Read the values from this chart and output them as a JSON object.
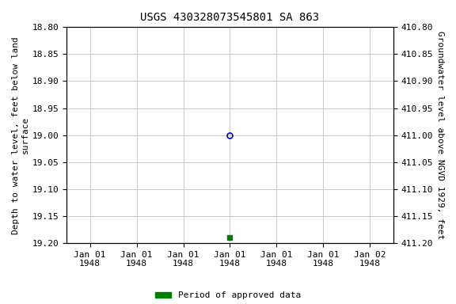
{
  "title": "USGS 430328073545801 SA 863",
  "ylabel_left": "Depth to water level, feet below land\nsurface",
  "ylabel_right": "Groundwater level above NGVD 1929, feet",
  "ylim_left": [
    18.8,
    19.2
  ],
  "ylim_right": [
    411.2,
    410.8
  ],
  "yticks_left": [
    18.8,
    18.85,
    18.9,
    18.95,
    19.0,
    19.05,
    19.1,
    19.15,
    19.2
  ],
  "yticks_right": [
    411.2,
    411.15,
    411.1,
    411.05,
    411.0,
    410.95,
    410.9,
    410.85,
    410.8
  ],
  "point_open_x": 0.0,
  "point_open_y": 19.0,
  "point_filled_x": 0.0,
  "point_filled_y": 19.19,
  "open_color": "#0000cc",
  "filled_color": "#008000",
  "background_color": "#ffffff",
  "grid_color": "#cccccc",
  "title_fontsize": 10,
  "axis_fontsize": 8,
  "tick_fontsize": 8,
  "legend_label": "Period of approved data",
  "x_tick_labels": [
    "Jan 01\n1948",
    "Jan 01\n1948",
    "Jan 01\n1948",
    "Jan 01\n1948",
    "Jan 01\n1948",
    "Jan 01\n1948",
    "Jan 02\n1948"
  ],
  "x_tick_positions": [
    -3,
    -2,
    -1,
    0,
    1,
    2,
    3
  ],
  "xlim": [
    -3.5,
    3.5
  ]
}
